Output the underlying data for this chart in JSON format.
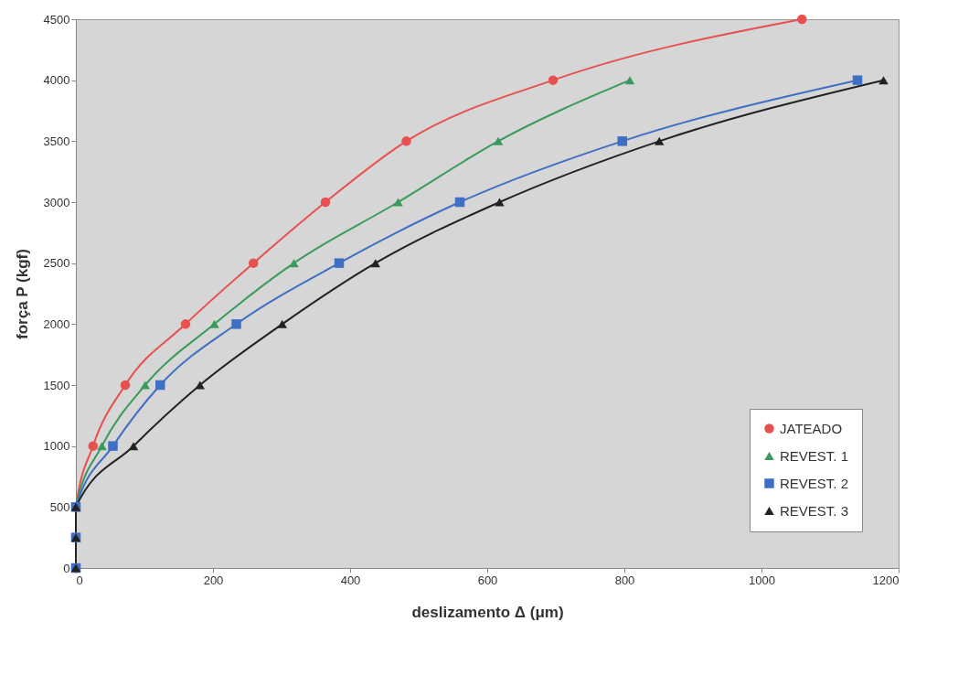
{
  "chart_data": {
    "type": "line",
    "xlabel": "deslizamento Δ (μm)",
    "ylabel": "força P (kgf)",
    "xlim": [
      0,
      1200
    ],
    "xticks": [
      0,
      200,
      400,
      600,
      800,
      1000,
      1200
    ],
    "ylim": [
      0,
      4500
    ],
    "yticks": [
      0,
      500,
      1000,
      1500,
      2000,
      2500,
      3000,
      3500,
      4000,
      4500
    ],
    "grid": false,
    "legend": "bottom right",
    "line_style": "solid",
    "series": [
      {
        "name": "JATEADO",
        "color": "#e8504f",
        "marker": "circle",
        "x": [
          0,
          0,
          0,
          25,
          72,
          160,
          259,
          364,
          482,
          696,
          1059
        ],
        "values": [
          0,
          250,
          500,
          1000,
          1500,
          2000,
          2500,
          3000,
          3500,
          4000,
          4500
        ]
      },
      {
        "name": "REVEST. 1",
        "color": "#3a9a5c",
        "marker": "triangle",
        "x": [
          0,
          0,
          0,
          38,
          101,
          202,
          318,
          470,
          616,
          808
        ],
        "values": [
          0,
          250,
          500,
          1000,
          1500,
          2000,
          2500,
          3000,
          3500,
          4000
        ]
      },
      {
        "name": "REVEST. 2",
        "color": "#3f6fc4",
        "marker": "square",
        "x": [
          0,
          0,
          0,
          54,
          123,
          234,
          384,
          560,
          797,
          1140
        ],
        "values": [
          0,
          250,
          500,
          1000,
          1500,
          2000,
          2500,
          3000,
          3500,
          4000
        ]
      },
      {
        "name": "REVEST. 3",
        "color": "#222222",
        "marker": "triangle",
        "x": [
          0,
          0,
          0,
          84,
          181,
          301,
          437,
          618,
          851,
          1178
        ],
        "values": [
          0,
          250,
          500,
          1000,
          1500,
          2000,
          2500,
          3000,
          3500,
          4000
        ]
      }
    ]
  }
}
